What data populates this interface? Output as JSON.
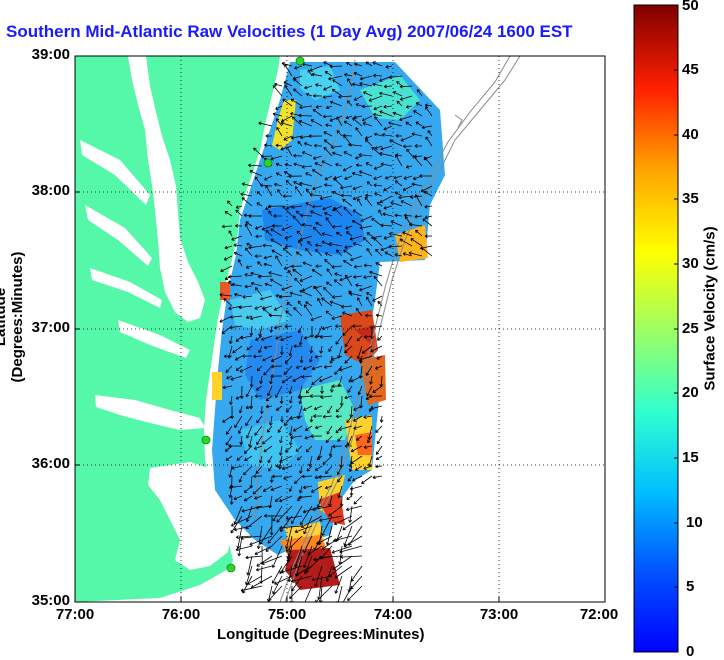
{
  "title": "Southern Mid-Atlantic Raw Velocities (1 Day Avg) 2007/06/24 1600 EST",
  "x_axis": {
    "label": "Longitude (Degrees:Minutes)",
    "ticks": [
      "77:00",
      "76:00",
      "75:00",
      "74:00",
      "73:00",
      "72:00"
    ],
    "range": [
      -77,
      -72
    ]
  },
  "y_axis": {
    "label": "Latitude (Degrees:Minutes)",
    "ticks": [
      "39:00",
      "38:00",
      "37:00",
      "36:00",
      "35:00"
    ],
    "range": [
      35,
      39
    ]
  },
  "colorbar": {
    "label": "Surface Velocity (cm/s)",
    "ticks": [
      "50",
      "45",
      "40",
      "35",
      "30",
      "25",
      "20",
      "15",
      "10",
      "5",
      "0"
    ],
    "range": [
      0,
      50
    ]
  },
  "colors": {
    "land": "#55f7a9",
    "water": "#ffffff",
    "title_text": "#1a1aff",
    "station_marker": "#2cd42c"
  },
  "grid": "dotted"
}
